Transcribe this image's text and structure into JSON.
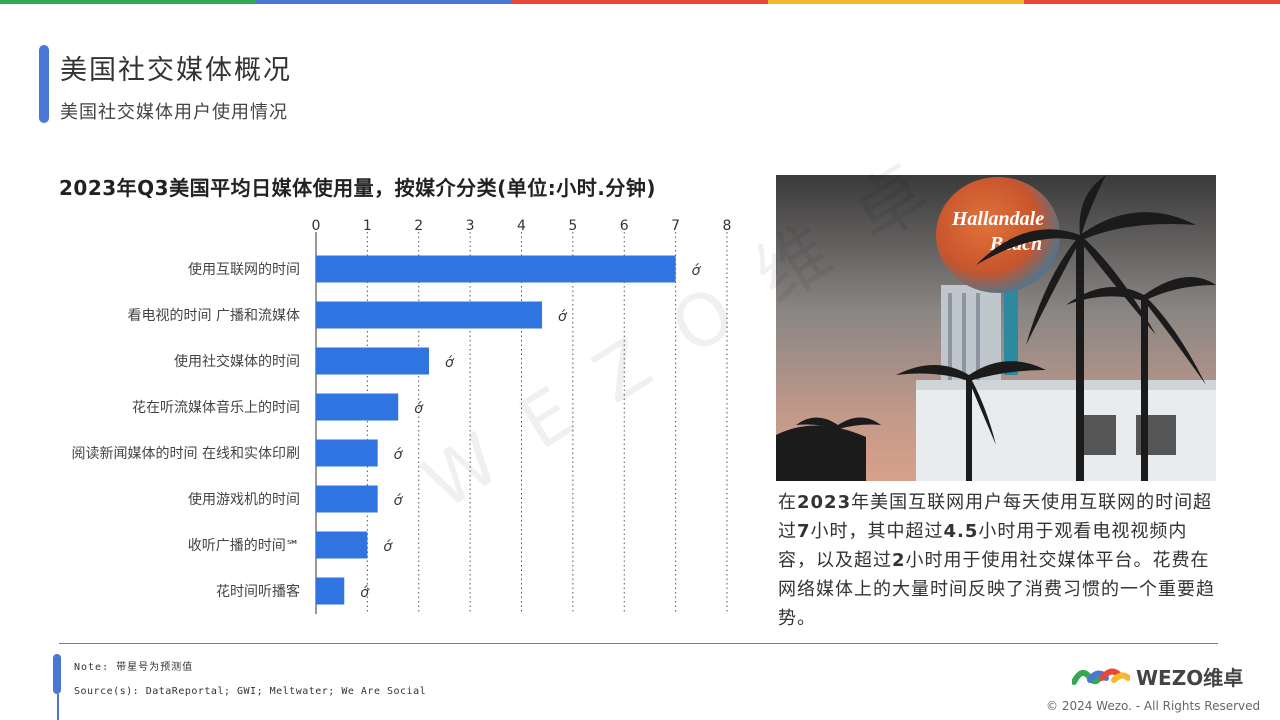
{
  "brand_colors": [
    "#34a853",
    "#4a76d6",
    "#e8483a",
    "#f6b72c",
    "#e8483a"
  ],
  "header": {
    "title": "美国社交媒体概况",
    "subtitle": "美国社交媒体用户使用情况"
  },
  "chart_data": {
    "type": "bar",
    "orientation": "horizontal",
    "title": "2023年Q3美国平均日媒体使用量，按媒介分类(单位:小时.分钟)",
    "categories": [
      "使用互联网的时间",
      "看电视的时间 广播和流媒体",
      "使用社交媒体的时间",
      "花在听流媒体音乐上的时间",
      "阅读新闻媒体的时间 在线和实体印刷",
      "使用游戏机的时间",
      "收听广播的时间℠",
      "花时间听播客"
    ],
    "values": [
      7.0,
      4.4,
      2.2,
      1.6,
      1.2,
      1.2,
      1.0,
      0.55
    ],
    "value_labels": [
      "ớ",
      "ớ",
      "ớ",
      "ớ",
      "ớ",
      "ớ",
      "ớ",
      "ớ"
    ],
    "xlim": [
      0,
      8
    ],
    "xticks": [
      "0",
      "1",
      "2",
      "3",
      "4",
      "5",
      "6",
      "7",
      "8"
    ],
    "grid": "vertical dotted",
    "bar_color": "#2f74e0"
  },
  "description": {
    "p1": "在",
    "b1": "2023",
    "p2": "年美国互联网用户每天使用互联网的时间超过",
    "b2": "7",
    "p3": "小时，其中超过",
    "b3": "4.5",
    "p4": "小时用于观看电视视频内容，以及超过",
    "b4": "2",
    "p5": "小时用于使用社交媒体平台。花费在网络媒体上的大量时间反映了消费习惯的一个重要趋势。"
  },
  "photo": {
    "sign_line1": "Hallandale",
    "sign_line2": "Beach"
  },
  "footer": {
    "note": "Note: 带星号为预测值",
    "source": "Source(s): DataReportal; GWI; Meltwater; We Are Social",
    "logo_text": "WEZO维卓",
    "copyright": "© 2024 Wezo. - All Rights Reserved"
  },
  "watermark": "WEZO维卓"
}
